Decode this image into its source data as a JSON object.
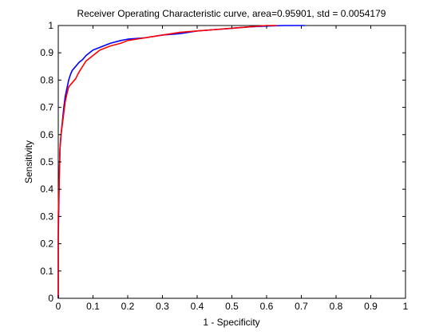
{
  "chart_data": {
    "type": "line",
    "title": "Receiver Operating Characteristic curve, area=0.95901, std = 0.0054179",
    "xlabel": "1 - Specificity",
    "ylabel": "Sensitivity",
    "xlim": [
      0,
      1
    ],
    "ylim": [
      0,
      1
    ],
    "xticks": [
      "0",
      "0.1",
      "0.2",
      "0.3",
      "0.4",
      "0.5",
      "0.6",
      "0.7",
      "0.8",
      "0.9",
      "1"
    ],
    "yticks": [
      "0",
      "0.1",
      "0.2",
      "0.3",
      "0.4",
      "0.5",
      "0.6",
      "0.7",
      "0.8",
      "0.9",
      "1"
    ],
    "grid": false,
    "legend": "none",
    "series": [
      {
        "color": "#0000ff",
        "x": [
          0,
          0,
          0.003,
          0.005,
          0.008,
          0.012,
          0.016,
          0.02,
          0.025,
          0.03,
          0.035,
          0.04,
          0.05,
          0.06,
          0.07,
          0.08,
          0.1,
          0.12,
          0.15,
          0.18,
          0.2,
          0.25,
          0.3,
          0.35,
          0.4,
          0.45,
          0.5,
          0.55,
          0.6,
          0.65,
          0.7,
          0.71
        ],
        "y": [
          0,
          0.22,
          0.45,
          0.55,
          0.6,
          0.65,
          0.7,
          0.74,
          0.77,
          0.8,
          0.82,
          0.835,
          0.85,
          0.865,
          0.875,
          0.89,
          0.91,
          0.92,
          0.935,
          0.945,
          0.95,
          0.955,
          0.965,
          0.97,
          0.98,
          0.985,
          0.99,
          0.995,
          0.998,
          1,
          1,
          1
        ]
      },
      {
        "color": "#ff0000",
        "x": [
          0,
          0,
          0.003,
          0.005,
          0.008,
          0.012,
          0.016,
          0.02,
          0.025,
          0.03,
          0.04,
          0.05,
          0.06,
          0.07,
          0.08,
          0.1,
          0.12,
          0.15,
          0.18,
          0.2,
          0.25,
          0.3,
          0.35,
          0.4,
          0.45,
          0.5,
          0.55,
          0.6,
          0.63
        ],
        "y": [
          0,
          0.3,
          0.45,
          0.55,
          0.6,
          0.64,
          0.68,
          0.72,
          0.75,
          0.775,
          0.79,
          0.805,
          0.83,
          0.85,
          0.87,
          0.89,
          0.91,
          0.925,
          0.935,
          0.945,
          0.955,
          0.965,
          0.975,
          0.98,
          0.985,
          0.99,
          0.995,
          1,
          1
        ]
      }
    ]
  }
}
